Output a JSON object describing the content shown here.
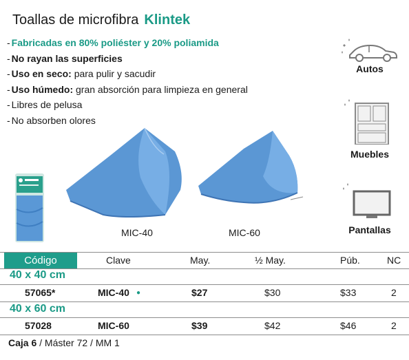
{
  "header": {
    "title": "Toallas de microfibra",
    "brand": "Klintek"
  },
  "features": [
    {
      "label": "Fabricadas en 80% poliéster y 20% poliamida",
      "style": "green"
    },
    {
      "label": "No rayan las superficies",
      "style": "bold"
    },
    {
      "bold": "Uso en seco:",
      "text": " para pulir y sacudir"
    },
    {
      "bold": "Uso húmedo:",
      "text": " gran absorción para limpieza en general"
    },
    {
      "label": "Libres de pelusa"
    },
    {
      "label": "No absorben olores"
    }
  ],
  "uses": [
    {
      "label": "Autos",
      "icon": "car-icon"
    },
    {
      "label": "Muebles",
      "icon": "cabinet-icon"
    },
    {
      "label": "Pantallas",
      "icon": "monitor-icon"
    }
  ],
  "captions": {
    "left": "MIC-40",
    "right": "MIC-60"
  },
  "table": {
    "headers": {
      "codigo": "Código",
      "clave": "Clave",
      "may": "May.",
      "half_may": "½ May.",
      "pub": "Púb.",
      "nc": "NC"
    },
    "groups": [
      {
        "size": "40 x 40 cm",
        "code": "57065*",
        "clave": "MIC-40",
        "bullet": "●",
        "may": "$27",
        "half_may": "$30",
        "pub": "$33",
        "nc": "2"
      },
      {
        "size": "40 x 60 cm",
        "code": "57028",
        "clave": "MIC-60",
        "may": "$39",
        "half_may": "$42",
        "pub": "$46",
        "nc": "2"
      }
    ]
  },
  "footer": {
    "bold": "Caja 6",
    "text": "/ Máster 72 / MM 1"
  },
  "colors": {
    "accent": "#1a9a86",
    "header_fill": "#1f9d8b",
    "towel": "#5b97d4"
  }
}
